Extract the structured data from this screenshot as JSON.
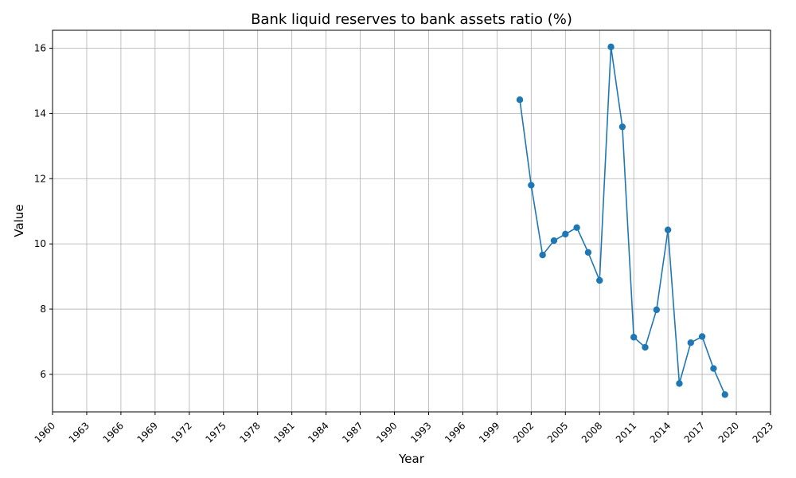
{
  "chart_data": {
    "type": "line",
    "title": "Bank liquid reserves to bank assets ratio (%)",
    "xlabel": "Year",
    "ylabel": "Value",
    "xlim": [
      1960,
      2023
    ],
    "ylim": [
      4.85,
      16.55
    ],
    "grid": true,
    "color": "#1f77b4",
    "x_ticks": [
      1960,
      1963,
      1966,
      1969,
      1972,
      1975,
      1978,
      1981,
      1984,
      1987,
      1990,
      1993,
      1996,
      1999,
      2002,
      2005,
      2008,
      2011,
      2014,
      2017,
      2020,
      2023
    ],
    "y_ticks": [
      6,
      8,
      10,
      12,
      14,
      16
    ],
    "series": [
      {
        "x": [
          2001,
          2002,
          2003,
          2004,
          2005,
          2006,
          2007,
          2008,
          2009,
          2010,
          2011,
          2012,
          2013,
          2014,
          2015,
          2016,
          2017,
          2018,
          2019
        ],
        "values": [
          14.42,
          11.8,
          9.66,
          10.1,
          10.3,
          10.5,
          9.74,
          8.88,
          16.04,
          13.59,
          7.14,
          6.83,
          7.98,
          10.43,
          5.72,
          6.97,
          7.16,
          6.18,
          5.38
        ]
      }
    ]
  }
}
